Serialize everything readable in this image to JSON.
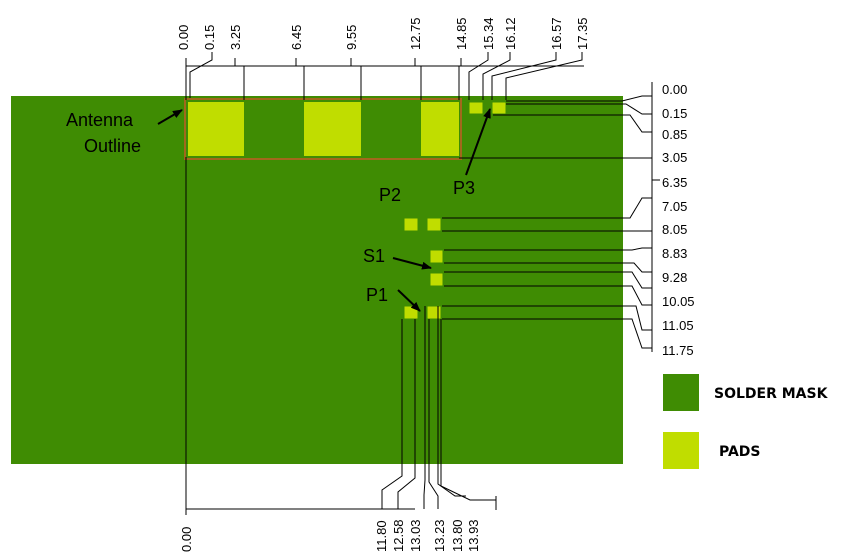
{
  "diagram": {
    "top_dimensions": [
      "0.00",
      "0.15",
      "3.25",
      "6.45",
      "9.55",
      "12.75",
      "14.85",
      "15.34",
      "16.12",
      "16.57",
      "17.35"
    ],
    "right_dimensions": [
      "0.00",
      "0.15",
      "0.85",
      "3.05",
      "6.35",
      "7.05",
      "8.05",
      "8.83",
      "9.28",
      "10.05",
      "11.05",
      "11.75"
    ],
    "bottom_dimensions": [
      "0.00",
      "11.80",
      "12.58",
      "13.03",
      "13.23",
      "13.80",
      "13.93"
    ],
    "labels": {
      "antenna_line1": "Antenna",
      "antenna_line2": "Outline",
      "p2": "P2",
      "p3": "P3",
      "s1": "S1",
      "p1": "P1"
    },
    "legend": [
      {
        "label": "SOLDER MASK",
        "color": "#3f8c03"
      },
      {
        "label": "PADS",
        "color": "#c0dd00"
      }
    ],
    "colors": {
      "solder_mask": "#3f8c03",
      "pads": "#c0dd00",
      "antenna_outline": "#a2681c"
    }
  }
}
